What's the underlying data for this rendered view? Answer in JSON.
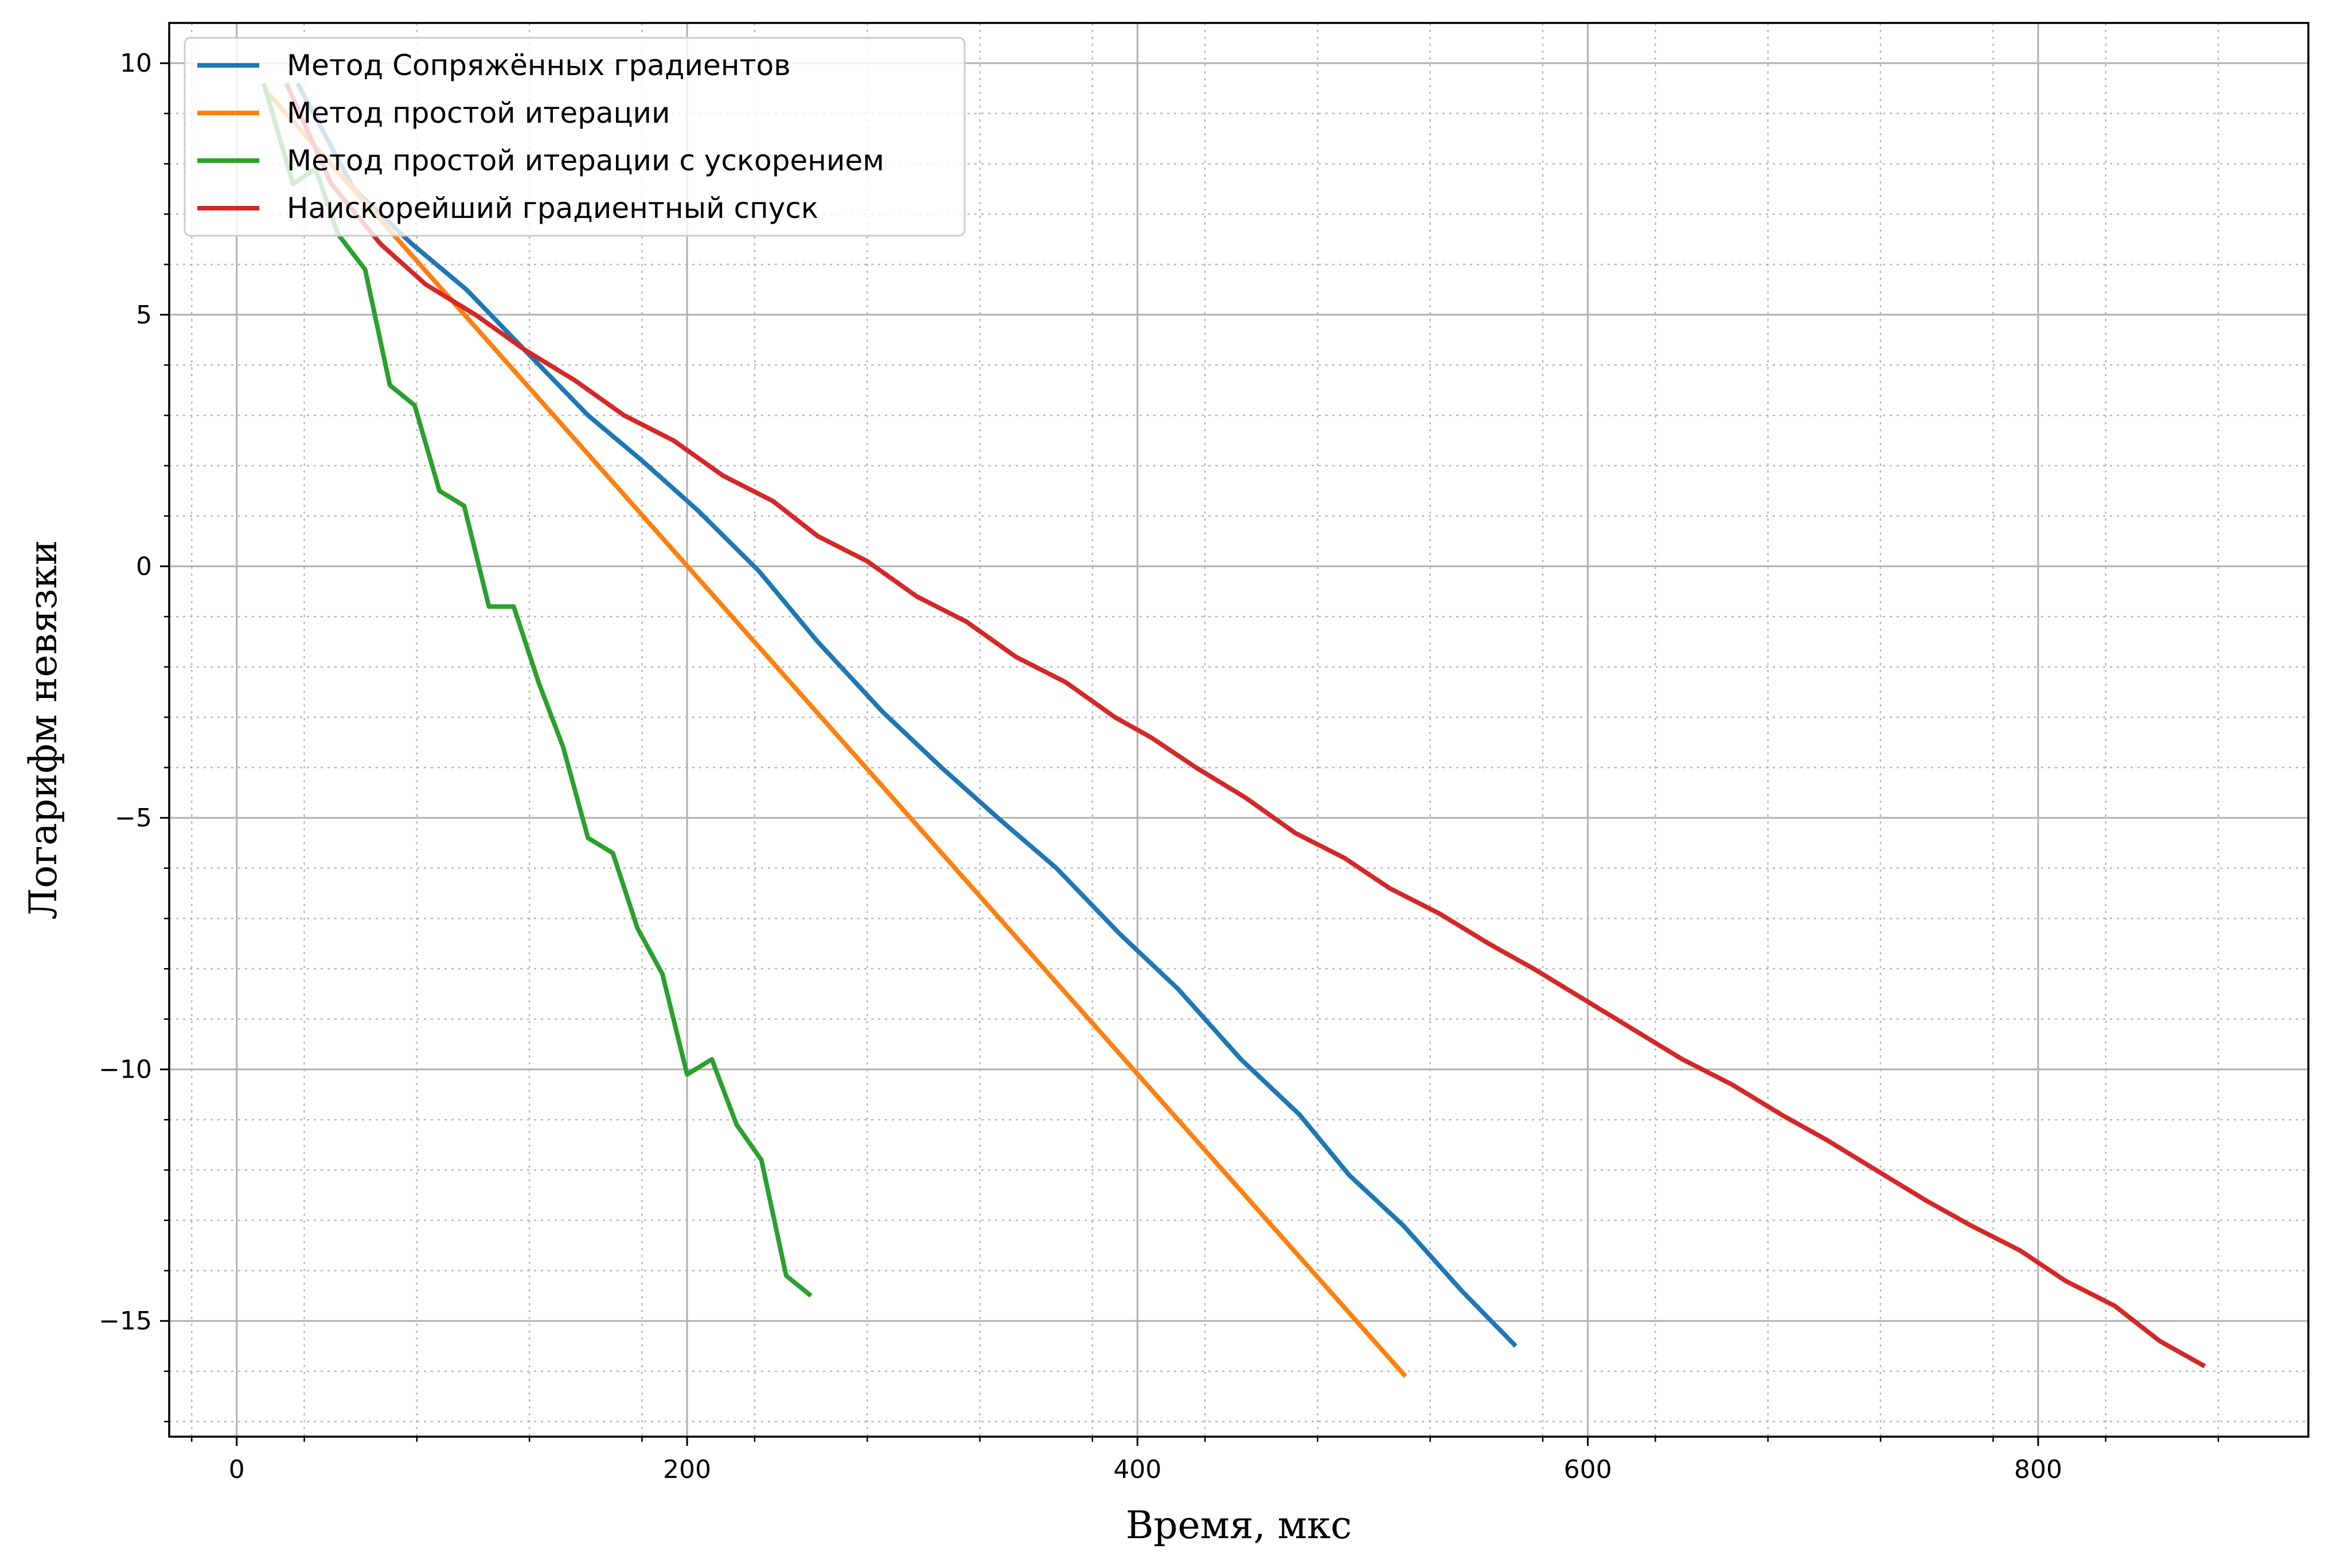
{
  "chart_data": {
    "type": "line",
    "title": "",
    "xlabel": "Время, мкс",
    "ylabel": "Логарифм невязки",
    "xlim": [
      -30,
      920
    ],
    "ylim": [
      -17.3,
      10.8
    ],
    "xticks": [
      0,
      200,
      400,
      600,
      800
    ],
    "xtick_labels": [
      "0",
      "200",
      "400",
      "600",
      "800"
    ],
    "yticks": [
      -15,
      -10,
      -5,
      0,
      5,
      10
    ],
    "ytick_labels": [
      "−15",
      "−10",
      "−5",
      "0",
      "5",
      "10"
    ],
    "grid": "major solid, minor dotted",
    "legend_position": "top-left",
    "series": [
      {
        "name": "Метод Сопряжённых градиентов",
        "color": "#1f77b4",
        "x": [
          27,
          52,
          78,
          102,
          130,
          156,
          180,
          205,
          232,
          258,
          287,
          313,
          338,
          364,
          392,
          418,
          446,
          472,
          494,
          518,
          544,
          568
        ],
        "y": [
          9.6,
          7.5,
          6.4,
          5.5,
          4.2,
          3.0,
          2.1,
          1.1,
          -0.1,
          -1.5,
          -2.9,
          -4.0,
          -5.0,
          -6.0,
          -7.3,
          -8.4,
          -9.8,
          -10.9,
          -12.1,
          -13.1,
          -14.4,
          -15.5
        ]
      },
      {
        "name": "Метод простой итерации",
        "color": "#ff7f0e",
        "x": [
          14,
          519
        ],
        "y": [
          9.4,
          -16.1
        ]
      },
      {
        "name": "Метод простой итерации с ускорением",
        "color": "#2ca02c",
        "x": [
          12,
          25,
          35,
          45,
          57,
          68,
          79,
          90,
          101,
          112,
          123,
          134,
          145,
          156,
          167,
          178,
          189,
          200,
          211,
          222,
          233,
          244,
          255
        ],
        "y": [
          9.6,
          7.6,
          7.9,
          6.6,
          5.9,
          3.6,
          3.2,
          1.5,
          1.2,
          -0.8,
          -0.8,
          -2.3,
          -3.6,
          -5.4,
          -5.7,
          -7.2,
          -8.1,
          -10.1,
          -9.8,
          -11.1,
          -11.8,
          -14.1,
          -14.5
        ]
      },
      {
        "name": "Наискорейший градиентный спуск",
        "color": "#d62728",
        "x": [
          22,
          42,
          64,
          84,
          106,
          128,
          150,
          172,
          194,
          216,
          238,
          258,
          280,
          302,
          324,
          346,
          368,
          390,
          406,
          426,
          448,
          470,
          492,
          512,
          534,
          556,
          576,
          598,
          620,
          642,
          664,
          686,
          706,
          728,
          750,
          770,
          792,
          812,
          834,
          854,
          874
        ],
        "y": [
          9.6,
          7.6,
          6.4,
          5.6,
          5.0,
          4.3,
          3.7,
          3.0,
          2.5,
          1.8,
          1.3,
          0.6,
          0.1,
          -0.6,
          -1.1,
          -1.8,
          -2.3,
          -3.0,
          -3.4,
          -4.0,
          -4.6,
          -5.3,
          -5.8,
          -6.4,
          -6.9,
          -7.5,
          -8.0,
          -8.6,
          -9.2,
          -9.8,
          -10.3,
          -10.9,
          -11.4,
          -12.0,
          -12.6,
          -13.1,
          -13.6,
          -14.2,
          -14.7,
          -15.4,
          -15.9
        ]
      }
    ]
  }
}
